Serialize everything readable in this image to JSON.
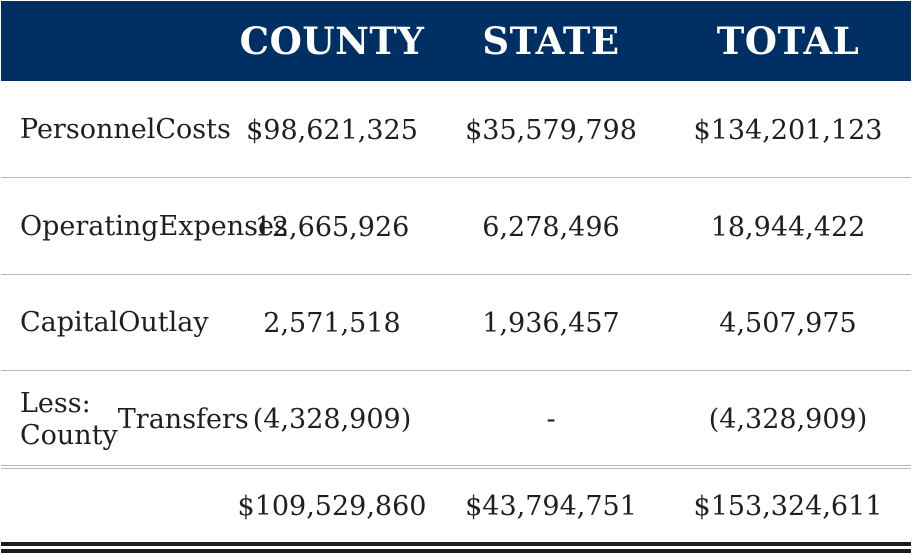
{
  "header": {
    "blank": "",
    "county": "COUNTY",
    "state": "STATE",
    "total": "TOTAL"
  },
  "rows": [
    {
      "label_line1": "Personnel",
      "label_line2": "Costs",
      "county": "$98,621,325",
      "state": "$35,579,798",
      "total": "$134,201,123"
    },
    {
      "label_line1": "Operating",
      "label_line2": "Expenses",
      "county": "12,665,926",
      "state": "6,278,496",
      "total": "18,944,422"
    },
    {
      "label_line1": "Capital",
      "label_line2": "Outlay",
      "county": "2,571,518",
      "state": "1,936,457",
      "total": "4,507,975"
    },
    {
      "label_line1": "Less: County",
      "label_line2": "Transfers",
      "county": "(4,328,909)",
      "state": "-",
      "total": "(4,328,909)"
    }
  ],
  "totals": {
    "label": "",
    "county": "$109,529,860",
    "state": "$43,794,751",
    "total": "$153,324,611"
  },
  "colors": {
    "header_bg": "#003063",
    "header_text": "#ffffff",
    "body_text": "#1f1f1f",
    "rule": "#b9b9b9"
  }
}
